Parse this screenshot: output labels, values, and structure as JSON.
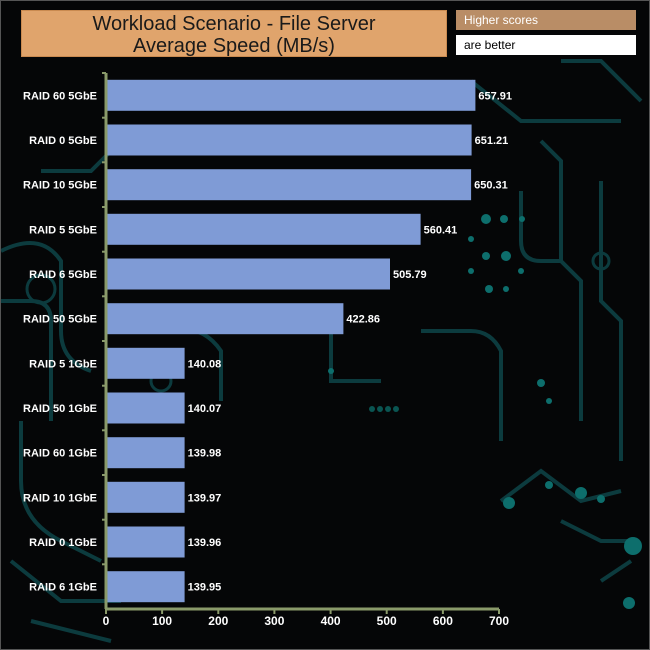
{
  "title_line1": "Workload Scenario - File Server",
  "title_line2": "Average Speed (MB/s)",
  "note_line1": "Higher scores",
  "note_line2": "are better",
  "colors": {
    "bar": "#7f9bd6",
    "axis": "#8a9a6a",
    "text": "#ffffff",
    "title_bg": "#e0a46c",
    "circuit": "#0c3b3e"
  },
  "chart_data": {
    "type": "bar",
    "orientation": "horizontal",
    "title": "Workload Scenario - File Server Average Speed (MB/s)",
    "categories": [
      "RAID 60 5GbE",
      "RAID 0 5GbE",
      "RAID 10 5GbE",
      "RAID 5 5GbE",
      "RAID 6 5GbE",
      "RAID 50 5GbE",
      "RAID 5 1GbE",
      "RAID 50 1GbE",
      "RAID 60 1GbE",
      "RAID 10 1GbE",
      "RAID 0 1GbE",
      "RAID 6 1GbE"
    ],
    "values": [
      657.91,
      651.21,
      650.31,
      560.41,
      505.79,
      422.86,
      140.08,
      140.07,
      139.98,
      139.97,
      139.96,
      139.95
    ],
    "value_labels": [
      "657.91",
      "651.21",
      "650.31",
      "560.41",
      "505.79",
      "422.86",
      "140.08",
      "140.07",
      "139.98",
      "139.97",
      "139.96",
      "139.95"
    ],
    "xlim": [
      0,
      700
    ],
    "xticks": [
      0,
      100,
      200,
      300,
      400,
      500,
      600,
      700
    ],
    "xlabel": "",
    "ylabel": "",
    "grid": false
  }
}
